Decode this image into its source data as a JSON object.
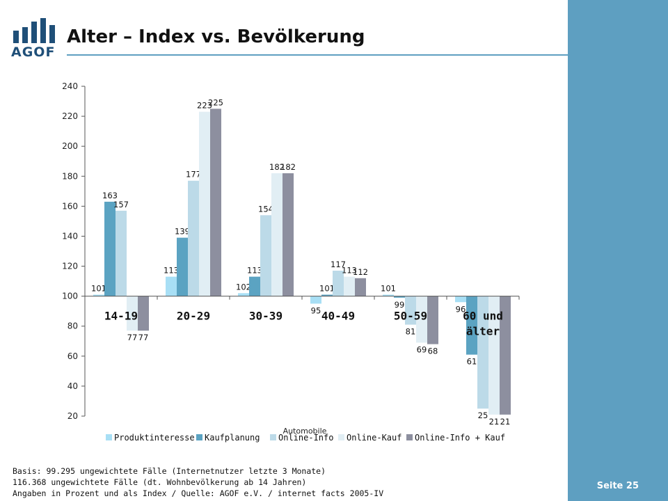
{
  "header": {
    "title": "Alter – Index vs. Bevölkerung",
    "logo_text": "AGOF"
  },
  "footer": {
    "page_label": "Seite 25",
    "notes": [
      "Basis: 99.295 ungewichtete Fälle (Internetnutzer letzte 3 Monate)",
      "116.368 ungewichtete Fälle (dt. Wohnbevölkerung ab 14 Jahren)",
      "Angaben in Prozent und als Index / Quelle: AGOF e.V. / internet facts 2005-IV"
    ]
  },
  "colors": {
    "brand_band": "#5e9fc1",
    "logo": "#1f4f78"
  },
  "chart_data": {
    "type": "bar",
    "title": "",
    "xlabel": "Automobile",
    "ylabel": "",
    "baseline": 100,
    "ylim": [
      20,
      240
    ],
    "yticks": [
      20,
      40,
      60,
      80,
      100,
      120,
      140,
      160,
      180,
      200,
      220,
      240
    ],
    "grid": false,
    "legend_position": "bottom",
    "categories": [
      "14-19",
      "20-29",
      "30-39",
      "40-49",
      "50-59",
      "60 und älter"
    ],
    "series": [
      {
        "name": "Produktinteresse",
        "color": "#a8dff5",
        "values": [
          101,
          113,
          102,
          95,
          101,
          96
        ]
      },
      {
        "name": "Kaufplanung",
        "color": "#5ba3c2",
        "values": [
          163,
          139,
          113,
          101,
          99,
          61
        ]
      },
      {
        "name": "Online-Info",
        "color": "#bcdae8",
        "values": [
          157,
          177,
          154,
          117,
          81,
          25
        ]
      },
      {
        "name": "Online-Kauf",
        "color": "#e1eef4",
        "values": [
          77,
          223,
          182,
          113,
          69,
          21
        ]
      },
      {
        "name": "Online-Info + Kauf",
        "color": "#8d8f9f",
        "values": [
          77,
          225,
          182,
          112,
          68,
          21
        ]
      }
    ]
  }
}
